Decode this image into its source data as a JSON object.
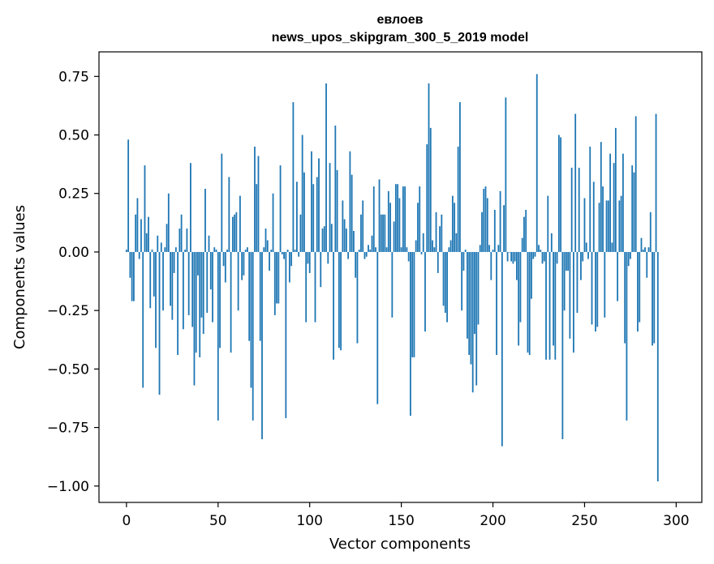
{
  "chart_data": {
    "type": "bar",
    "title": "евлоев",
    "subtitle": "news_upos_skipgram_300_5_2019 model",
    "xlabel": "Vector components",
    "ylabel": "Components values",
    "xlim": [
      -15,
      314
    ],
    "ylim": [
      -1.07,
      0.855
    ],
    "xticks": [
      0,
      50,
      100,
      150,
      200,
      250,
      300
    ],
    "xtick_labels": [
      "0",
      "50",
      "100",
      "150",
      "200",
      "250",
      "300"
    ],
    "yticks": [
      0.75,
      0.5,
      0.25,
      0.0,
      -0.25,
      -0.5,
      -0.75,
      -1.0
    ],
    "ytick_labels": [
      "0.75",
      "0.50",
      "0.25",
      "0.00",
      "−0.25",
      "−0.50",
      "−0.75",
      "−1.00"
    ],
    "bar_color": "#1f77b4",
    "values": [
      0.01,
      0.48,
      -0.11,
      -0.21,
      -0.21,
      0.16,
      0.23,
      -0.03,
      0.14,
      -0.58,
      0.37,
      0.08,
      0.15,
      -0.24,
      0.01,
      -0.19,
      -0.41,
      0.07,
      -0.61,
      0.04,
      -0.25,
      0.02,
      0.12,
      0.25,
      -0.23,
      -0.29,
      -0.09,
      0.02,
      -0.44,
      0.1,
      0.16,
      -0.33,
      0.01,
      0.1,
      -0.27,
      0.38,
      -0.32,
      -0.57,
      -0.43,
      -0.1,
      -0.45,
      -0.28,
      -0.35,
      0.27,
      -0.26,
      0.07,
      -0.16,
      -0.3,
      0.02,
      0.01,
      -0.72,
      -0.41,
      0.42,
      -0.06,
      -0.13,
      0.01,
      0.32,
      -0.43,
      0.15,
      0.16,
      0.17,
      -0.25,
      0.24,
      -0.12,
      -0.1,
      0.01,
      0.02,
      -0.38,
      -0.58,
      -0.72,
      0.45,
      0.29,
      0.41,
      -0.38,
      -0.8,
      0.02,
      0.1,
      0.05,
      -0.08,
      0.01,
      0.25,
      -0.27,
      -0.22,
      -0.22,
      0.37,
      -0.01,
      -0.03,
      -0.71,
      0.01,
      -0.13,
      -0.06,
      0.64,
      0.01,
      0.3,
      -0.02,
      0.16,
      0.5,
      0.34,
      -0.3,
      -0.05,
      -0.09,
      0.43,
      0.29,
      -0.3,
      0.32,
      0.4,
      -0.15,
      0.1,
      0.11,
      0.72,
      -0.05,
      0.38,
      0.12,
      -0.46,
      0.54,
      0.35,
      -0.41,
      -0.42,
      0.22,
      0.14,
      0.1,
      -0.03,
      0.43,
      0.33,
      0.09,
      -0.11,
      -0.39,
      0.01,
      0.16,
      0.22,
      -0.03,
      -0.02,
      0.03,
      0.01,
      0.07,
      0.28,
      0.02,
      -0.65,
      0.31,
      0.16,
      0.16,
      0.16,
      0.02,
      0.26,
      0.21,
      -0.28,
      0.13,
      0.29,
      0.29,
      0.23,
      0.02,
      0.28,
      0.28,
      0.02,
      -0.04,
      -0.7,
      -0.45,
      -0.45,
      0.05,
      0.21,
      0.28,
      -0.01,
      0.08,
      -0.34,
      0.46,
      0.72,
      0.53,
      0.05,
      0.02,
      0.17,
      -0.09,
      0.11,
      0.16,
      -0.23,
      -0.26,
      -0.3,
      0.02,
      0.05,
      0.24,
      0.21,
      0.08,
      0.45,
      0.64,
      -0.25,
      -0.08,
      0.01,
      -0.37,
      -0.44,
      -0.48,
      -0.6,
      -0.35,
      -0.57,
      -0.31,
      0.03,
      0.17,
      0.27,
      0.28,
      0.23,
      0.03,
      -0.12,
      0.01,
      0.18,
      -0.44,
      0.03,
      0.26,
      -0.83,
      0.2,
      0.66,
      -0.04,
      0.0,
      -0.04,
      -0.05,
      -0.04,
      -0.12,
      -0.4,
      -0.3,
      0.06,
      0.15,
      0.18,
      -0.43,
      -0.44,
      -0.2,
      -0.03,
      -0.02,
      0.76,
      0.03,
      0.01,
      -0.05,
      -0.04,
      -0.46,
      0.24,
      -0.46,
      0.08,
      -0.4,
      -0.46,
      -0.05,
      0.5,
      0.49,
      -0.8,
      -0.25,
      -0.08,
      -0.08,
      -0.37,
      0.36,
      -0.43,
      0.59,
      -0.26,
      0.36,
      -0.12,
      -0.04,
      0.23,
      0.04,
      -0.03,
      0.45,
      -0.31,
      0.3,
      -0.34,
      -0.32,
      0.21,
      0.47,
      0.28,
      -0.28,
      0.22,
      0.22,
      0.42,
      0.04,
      0.38,
      0.53,
      -0.21,
      0.22,
      0.24,
      0.42,
      -0.39,
      -0.72,
      -0.06,
      -0.03,
      0.37,
      0.34,
      0.58,
      -0.34,
      -0.3,
      0.06,
      0.01,
      0.02,
      -0.11,
      0.02,
      0.17,
      -0.4,
      -0.39,
      0.59,
      -0.98
    ]
  }
}
